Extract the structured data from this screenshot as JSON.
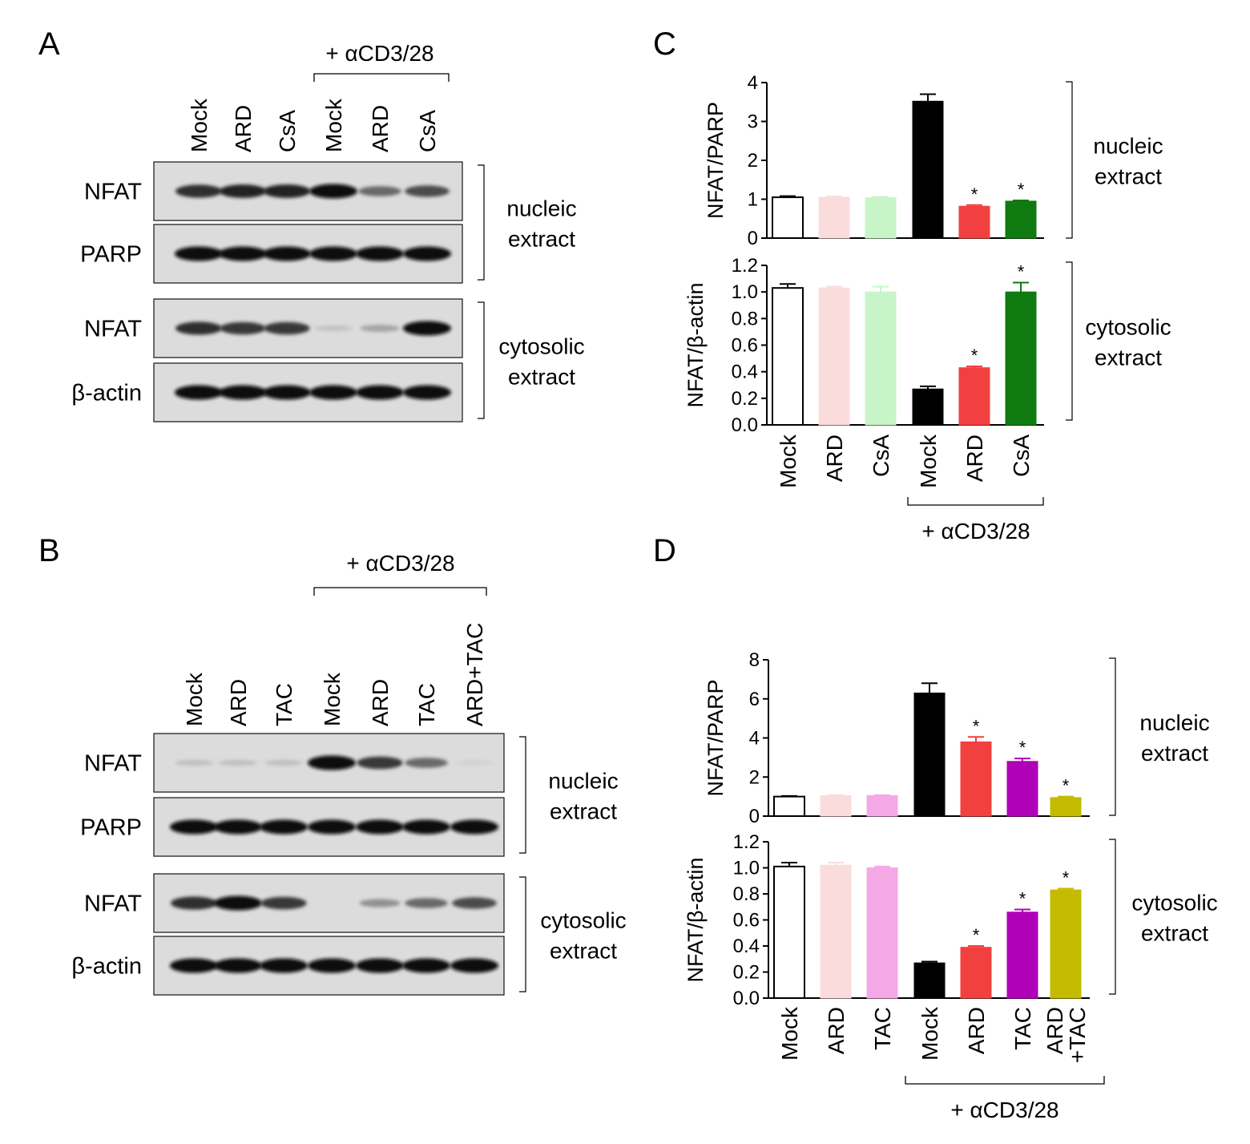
{
  "panel_A": {
    "letter": "A",
    "treatment_label": "+ αCD3/28",
    "lanes": [
      "Mock",
      "ARD",
      "CsA",
      "Mock",
      "ARD",
      "CsA"
    ],
    "blots": [
      {
        "label": "NFAT",
        "band_intensity": [
          0.85,
          0.9,
          0.9,
          1.0,
          0.55,
          0.7
        ]
      },
      {
        "label": "PARP",
        "band_intensity": [
          1.0,
          1.0,
          1.0,
          1.0,
          1.0,
          1.0
        ]
      },
      {
        "label": "NFAT",
        "band_intensity": [
          0.85,
          0.8,
          0.8,
          0.1,
          0.25,
          1.0
        ]
      },
      {
        "label": "β-actin",
        "band_intensity": [
          1.0,
          1.0,
          1.0,
          1.0,
          1.0,
          1.0
        ]
      }
    ],
    "fractions": [
      {
        "line1": "nucleic",
        "line2": "extract"
      },
      {
        "line1": "cytosolic",
        "line2": "extract"
      }
    ]
  },
  "panel_B": {
    "letter": "B",
    "treatment_label": "+ αCD3/28",
    "lanes": [
      "Mock",
      "ARD",
      "TAC",
      "Mock",
      "ARD",
      "TAC",
      "ARD+TAC"
    ],
    "blots": [
      {
        "label": "NFAT",
        "band_intensity": [
          0.12,
          0.12,
          0.12,
          1.0,
          0.8,
          0.55,
          0.03
        ]
      },
      {
        "label": "PARP",
        "band_intensity": [
          1.0,
          1.0,
          1.0,
          1.0,
          1.0,
          1.0,
          1.0
        ]
      },
      {
        "label": "NFAT",
        "band_intensity": [
          0.85,
          1.0,
          0.8,
          0.0,
          0.35,
          0.55,
          0.7
        ]
      },
      {
        "label": "β-actin",
        "band_intensity": [
          1.0,
          1.0,
          1.0,
          1.0,
          1.0,
          1.0,
          1.0
        ]
      }
    ],
    "fractions": [
      {
        "line1": "nucleic",
        "line2": "extract"
      },
      {
        "line1": "cytosolic",
        "line2": "extract"
      }
    ]
  },
  "panel_C": {
    "letter": "C",
    "treatment_label": "+ αCD3/28"
  },
  "panel_D": {
    "letter": "D",
    "treatment_label": "+ αCD3/28"
  },
  "chart_data": [
    {
      "type": "bar",
      "panel": "C",
      "categories": [
        "Mock",
        "ARD",
        "CsA",
        "Mock",
        "ARD",
        "CsA"
      ],
      "values": [
        1.05,
        1.05,
        1.04,
        3.52,
        0.82,
        0.95
      ],
      "errors": [
        0.03,
        0.02,
        0.02,
        0.18,
        0.03,
        0.02
      ],
      "significant": [
        false,
        false,
        false,
        false,
        true,
        true
      ],
      "ylabel": "NFAT/PARP",
      "ylim": [
        0,
        4
      ],
      "yticks": [
        "0",
        "1",
        "2",
        "3",
        "4"
      ],
      "fraction": {
        "line1": "nucleic",
        "line2": "extract"
      },
      "colors": [
        "#ffffff",
        "#fbdcdc",
        "#c8f5c8",
        "#000000",
        "#f24040",
        "#0f7a0f"
      ]
    },
    {
      "type": "bar",
      "panel": "C",
      "categories": [
        "Mock",
        "ARD",
        "CsA",
        "Mock",
        "ARD",
        "CsA"
      ],
      "values": [
        1.03,
        1.03,
        1.0,
        0.27,
        0.43,
        1.0
      ],
      "errors": [
        0.03,
        0.01,
        0.04,
        0.02,
        0.01,
        0.07
      ],
      "significant": [
        false,
        false,
        false,
        false,
        true,
        true
      ],
      "ylabel": "NFAT/β-actin",
      "ylim": [
        0,
        1.2
      ],
      "yticks": [
        "0.0",
        "0.2",
        "0.4",
        "0.6",
        "0.8",
        "1.0",
        "1.2"
      ],
      "fraction": {
        "line1": "cytosolic",
        "line2": "extract"
      },
      "colors": [
        "#ffffff",
        "#fbdcdc",
        "#c8f5c8",
        "#000000",
        "#f24040",
        "#0f7a0f"
      ]
    },
    {
      "type": "bar",
      "panel": "D",
      "categories": [
        "Mock",
        "ARD",
        "TAC",
        "Mock",
        "ARD",
        "TAC",
        "ARD+TAC"
      ],
      "values": [
        1.0,
        1.05,
        1.05,
        6.3,
        3.8,
        2.8,
        0.95
      ],
      "errors": [
        0.03,
        0.02,
        0.02,
        0.5,
        0.25,
        0.15,
        0.05
      ],
      "significant": [
        false,
        false,
        false,
        false,
        true,
        true,
        true
      ],
      "ylabel": "NFAT/PARP",
      "ylim": [
        0,
        8
      ],
      "yticks": [
        "0",
        "2",
        "4",
        "6",
        "8"
      ],
      "fraction": {
        "line1": "nucleic",
        "line2": "extract"
      },
      "colors": [
        "#ffffff",
        "#fbdcdc",
        "#f5a8e6",
        "#000000",
        "#f24040",
        "#b000b8",
        "#c2bb00"
      ]
    },
    {
      "type": "bar",
      "panel": "D",
      "categories": [
        "Mock",
        "ARD",
        "TAC",
        "Mock",
        "ARD",
        "TAC",
        "ARD+TAC"
      ],
      "values": [
        1.01,
        1.02,
        1.0,
        0.27,
        0.39,
        0.66,
        0.83
      ],
      "errors": [
        0.03,
        0.02,
        0.01,
        0.01,
        0.01,
        0.02,
        0.01
      ],
      "significant": [
        false,
        false,
        false,
        false,
        true,
        true,
        true
      ],
      "ylabel": "NFAT/β-actin",
      "ylim": [
        0,
        1.2
      ],
      "yticks": [
        "0.0",
        "0.2",
        "0.4",
        "0.6",
        "0.8",
        "1.0",
        "1.2"
      ],
      "fraction": {
        "line1": "cytosolic",
        "line2": "extract"
      },
      "colors": [
        "#ffffff",
        "#fbdcdc",
        "#f5a8e6",
        "#000000",
        "#f24040",
        "#b000b8",
        "#c2bb00"
      ]
    }
  ]
}
